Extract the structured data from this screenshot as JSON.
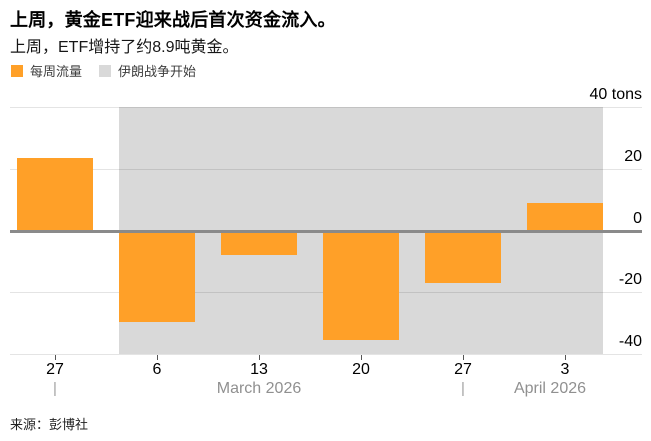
{
  "header": {
    "title": "上周，黄金ETF迎来战后首次资金流入。",
    "subtitle": "上周，ETF增持了约8.9吨黄金。"
  },
  "legend": [
    {
      "label": "每周流量",
      "color": "#FFA028",
      "swatch": "orange-square"
    },
    {
      "label": "伊朗战争开始",
      "color": "#D9D9D9",
      "swatch": "gray-square"
    }
  ],
  "chart_data": {
    "type": "bar",
    "title": "上周，黄金ETF迎来战后首次资金流入。",
    "subtitle": "上周，ETF增持了约8.9吨黄金。",
    "unit": "tons",
    "categories": [
      "27",
      "6",
      "13",
      "20",
      "27",
      "3"
    ],
    "series": [
      {
        "name": "每周流量",
        "values": [
          23.4,
          -29.5,
          -7.9,
          -35.3,
          -16.7,
          8.9
        ]
      }
    ],
    "ylim": [
      -40,
      40
    ],
    "yticks": [
      {
        "value": 40,
        "label": "40 tons"
      },
      {
        "value": 20,
        "label": "20"
      },
      {
        "value": 0,
        "label": "0"
      },
      {
        "value": -20,
        "label": "-20"
      },
      {
        "value": -40,
        "label": "-40"
      }
    ],
    "month_axis": [
      {
        "label": "March 2026",
        "separator_at_category_index": 0
      },
      {
        "label": "April 2026",
        "separator_at_category_index": 4
      }
    ],
    "event_band": {
      "label": "伊朗战争开始",
      "from_category_index": 1,
      "to_category_index": 5,
      "color": "#D9D9D9"
    },
    "bar_color": "#FFA028",
    "grid": true,
    "legend_position": "top-left",
    "yaxis_position": "right"
  },
  "source": "来源：彭博社"
}
